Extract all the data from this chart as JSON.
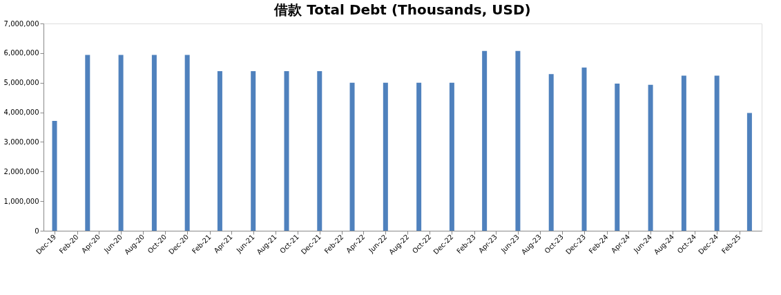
{
  "chart_data": {
    "type": "bar",
    "title": "借款 Total Debt (Thousands, USD)",
    "x": [
      "2019-12",
      "2020-03",
      "2020-06",
      "2020-09",
      "2020-12",
      "2021-03",
      "2021-06",
      "2021-09",
      "2021-12",
      "2022-03",
      "2022-06",
      "2022-09",
      "2022-12",
      "2023-03",
      "2023-06",
      "2023-09",
      "2023-12",
      "2024-03",
      "2024-06",
      "2024-09",
      "2024-12",
      "2025-03"
    ],
    "series": [
      {
        "color": "#4f81bd",
        "values": [
          3710000,
          5940000,
          5940000,
          5940000,
          5940000,
          5390000,
          5390000,
          5390000,
          5390000,
          5000000,
          5000000,
          5000000,
          5000000,
          6070000,
          6070000,
          5290000,
          5510000,
          4970000,
          4930000,
          5240000,
          5240000,
          3980000
        ]
      }
    ],
    "ylim": [
      0,
      7000000
    ],
    "yticks": [
      {
        "value": 0,
        "label": "0"
      },
      {
        "value": 1000000,
        "label": "1,000,000"
      },
      {
        "value": 2000000,
        "label": "2,000,000"
      },
      {
        "value": 3000000,
        "label": "3,000,000"
      },
      {
        "value": 4000000,
        "label": "4,000,000"
      },
      {
        "value": 5000000,
        "label": "5,000,000"
      },
      {
        "value": 6000000,
        "label": "6,000,000"
      },
      {
        "value": 7000000,
        "label": "7,000,000"
      }
    ],
    "xlim": [
      "2019-11-10",
      "2025-03-25"
    ],
    "xticks": [
      {
        "value": "2019-12",
        "label": "Dec-19"
      },
      {
        "value": "2020-02",
        "label": "Feb-20"
      },
      {
        "value": "2020-04",
        "label": "Apr-20"
      },
      {
        "value": "2020-06",
        "label": "Jun-20"
      },
      {
        "value": "2020-08",
        "label": "Aug-20"
      },
      {
        "value": "2020-10",
        "label": "Oct-20"
      },
      {
        "value": "2020-12",
        "label": "Dec-20"
      },
      {
        "value": "2021-02",
        "label": "Feb-21"
      },
      {
        "value": "2021-04",
        "label": "Apr-21"
      },
      {
        "value": "2021-06",
        "label": "Jun-21"
      },
      {
        "value": "2021-08",
        "label": "Aug-21"
      },
      {
        "value": "2021-10",
        "label": "Oct-21"
      },
      {
        "value": "2021-12",
        "label": "Dec-21"
      },
      {
        "value": "2022-02",
        "label": "Feb-22"
      },
      {
        "value": "2022-04",
        "label": "Apr-22"
      },
      {
        "value": "2022-06",
        "label": "Jun-22"
      },
      {
        "value": "2022-08",
        "label": "Aug-22"
      },
      {
        "value": "2022-10",
        "label": "Oct-22"
      },
      {
        "value": "2022-12",
        "label": "Dec-22"
      },
      {
        "value": "2023-02",
        "label": "Feb-23"
      },
      {
        "value": "2023-04",
        "label": "Apr-23"
      },
      {
        "value": "2023-06",
        "label": "Jun-23"
      },
      {
        "value": "2023-08",
        "label": "Aug-23"
      },
      {
        "value": "2023-10",
        "label": "Oct-23"
      },
      {
        "value": "2023-12",
        "label": "Dec-23"
      },
      {
        "value": "2024-02",
        "label": "Feb-24"
      },
      {
        "value": "2024-04",
        "label": "Apr-24"
      },
      {
        "value": "2024-06",
        "label": "Jun-24"
      },
      {
        "value": "2024-08",
        "label": "Aug-24"
      },
      {
        "value": "2024-10",
        "label": "Oct-24"
      },
      {
        "value": "2024-12",
        "label": "Dec-24"
      },
      {
        "value": "2025-02",
        "label": "Feb-25"
      }
    ],
    "grid": false,
    "legend": false
  }
}
